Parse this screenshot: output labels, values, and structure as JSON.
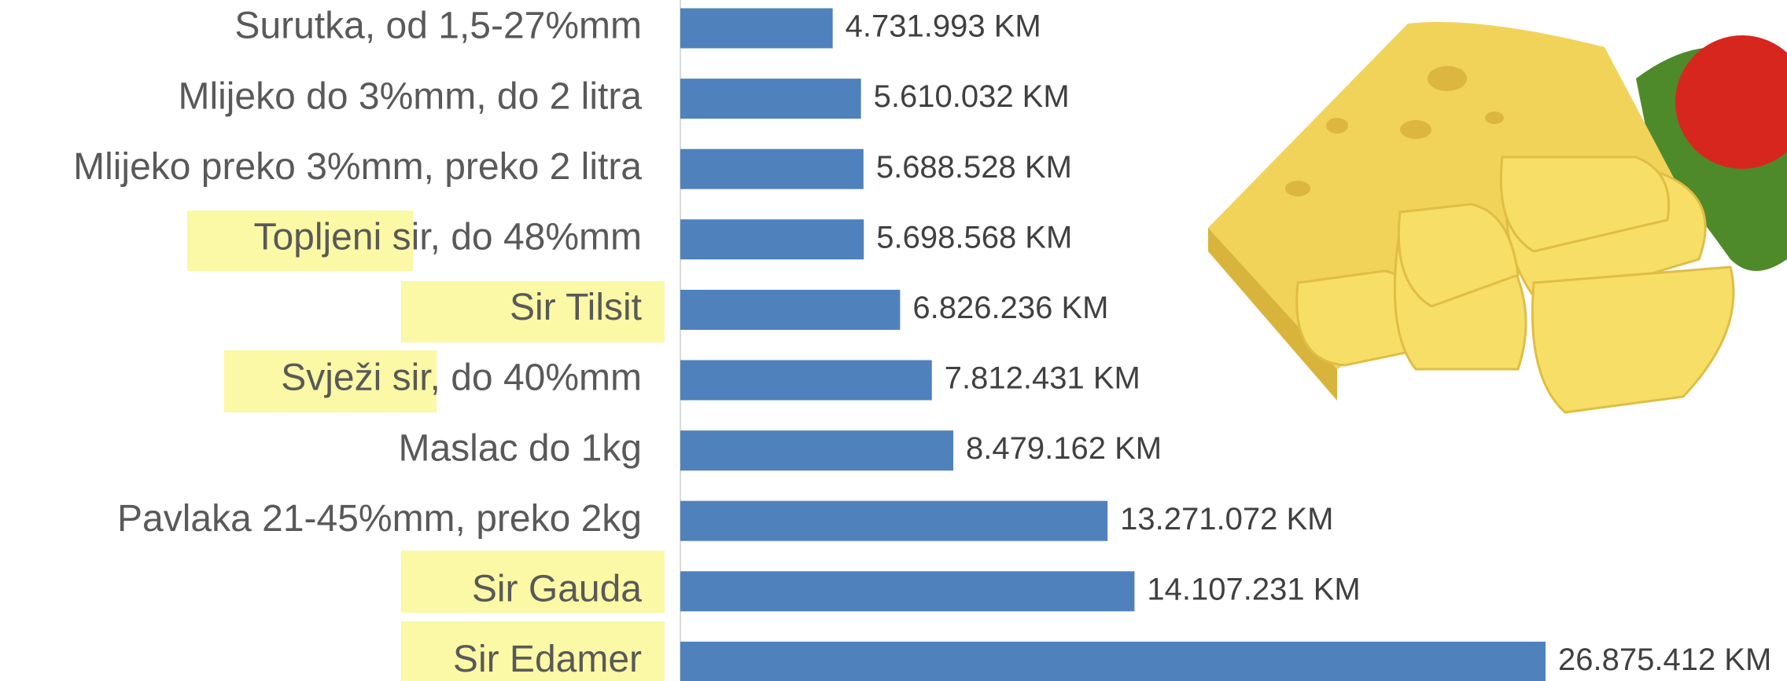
{
  "chart_data": {
    "type": "bar",
    "orientation": "horizontal",
    "color": "#4f81bd",
    "categories": [
      "Surutka, od 1,5-27%mm",
      "Mlijeko do 3%mm, do 2 litra",
      "Mlijeko preko 3%mm, preko 2 litra",
      "Topljeni sir, do 48%mm",
      "Sir Tilsit",
      "Svježi sir, do 40%mm",
      "Maslac do 1kg",
      "Pavlaka 21-45%mm, preko 2kg",
      "Sir Gauda",
      "Sir Edamer"
    ],
    "values": [
      4731993,
      5610032,
      5688528,
      5698568,
      6826236,
      7812431,
      8479162,
      13271072,
      14107231,
      26875412
    ],
    "value_labels": [
      "4.731.993 KM",
      "5.610.032 KM",
      "5.688.528 KM",
      "5.698.568 KM",
      "6.826.236 KM",
      "7.812.431 KM",
      "8.479.162 KM",
      "13.271.072 KM",
      "14.107.231 KM",
      "26.875.412 KM"
    ]
  }
}
